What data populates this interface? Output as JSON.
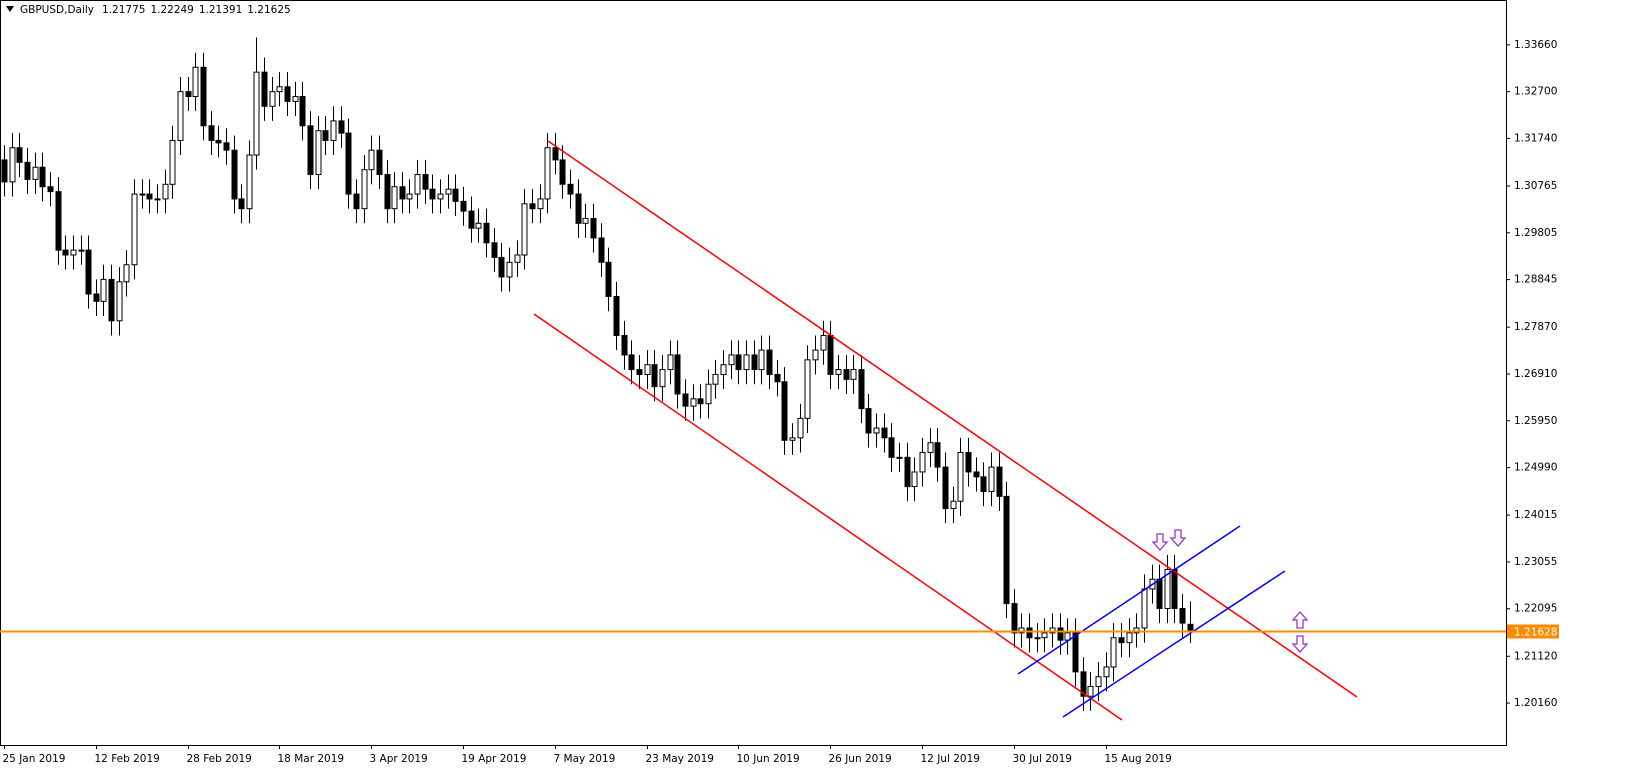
{
  "chart_data": {
    "type": "candlestick",
    "title": "GBPUSD,Daily",
    "categories": [
      "25 Jan 2019",
      null,
      null,
      null,
      null,
      null,
      null,
      null,
      null,
      null,
      null,
      null,
      "12 Feb 2019",
      null,
      null,
      null,
      null,
      null,
      null,
      null,
      null,
      null,
      null,
      null,
      "28 Feb 2019",
      null,
      null,
      null,
      null,
      null,
      null,
      null,
      null,
      null,
      null,
      null,
      "18 Mar 2019",
      null,
      null,
      null,
      null,
      null,
      null,
      null,
      null,
      null,
      null,
      null,
      "3 Apr 2019",
      null,
      null,
      null,
      null,
      null,
      null,
      null,
      null,
      null,
      null,
      null,
      "19 Apr 2019",
      null,
      null,
      null,
      null,
      null,
      null,
      null,
      null,
      null,
      null,
      null,
      "7 May 2019",
      null,
      null,
      null,
      null,
      null,
      null,
      null,
      null,
      null,
      null,
      null,
      "23 May 2019",
      null,
      null,
      null,
      null,
      null,
      null,
      null,
      null,
      null,
      null,
      null,
      "10 Jun 2019",
      null,
      null,
      null,
      null,
      null,
      null,
      null,
      null,
      null,
      null,
      null,
      "26 Jun 2019",
      null,
      null,
      null,
      null,
      null,
      null,
      null,
      null,
      null,
      null,
      null,
      "12 Jul 2019",
      null,
      null,
      null,
      null,
      null,
      null,
      null,
      null,
      null,
      null,
      null,
      "30 Jul 2019",
      null,
      null,
      null,
      null,
      null,
      null,
      null,
      null,
      null,
      null,
      null,
      "15 Aug 2019",
      null,
      null,
      null,
      null,
      null,
      null,
      null,
      null,
      null,
      null,
      null
    ],
    "open": [
      1.313,
      1.3085,
      1.3155,
      1.3125,
      1.309,
      1.3115,
      1.3075,
      1.3065,
      1.2945,
      1.2935,
      1.2945,
      1.2945,
      1.2855,
      1.284,
      1.2885,
      1.28,
      1.288,
      1.2915,
      1.306,
      1.306,
      1.305,
      1.305,
      1.308,
      1.317,
      1.327,
      1.326,
      1.332,
      1.32,
      1.317,
      1.3165,
      1.315,
      1.305,
      1.303,
      1.314,
      1.331,
      1.324,
      1.327,
      1.328,
      1.325,
      1.326,
      1.32,
      1.31,
      1.319,
      1.317,
      1.321,
      1.3185,
      1.306,
      1.303,
      1.311,
      1.315,
      1.31,
      1.303,
      1.3075,
      1.305,
      1.306,
      1.31,
      1.307,
      1.305,
      1.306,
      1.307,
      1.3045,
      1.3025,
      1.299,
      1.3,
      1.296,
      1.293,
      1.289,
      1.292,
      1.2935,
      1.304,
      1.303,
      1.305,
      1.3155,
      1.313,
      1.308,
      1.306,
      1.3,
      1.301,
      1.297,
      1.292,
      1.285,
      1.277,
      1.273,
      1.27,
      1.269,
      1.271,
      1.2665,
      1.27,
      1.273,
      1.265,
      1.2625,
      1.264,
      1.263,
      1.267,
      1.269,
      1.271,
      1.273,
      1.27,
      1.273,
      1.27,
      1.274,
      1.269,
      1.2675,
      1.2555,
      1.256,
      1.26,
      1.272,
      1.274,
      1.277,
      1.269,
      1.27,
      1.268,
      1.27,
      1.262,
      1.257,
      1.258,
      1.256,
      1.252,
      1.252,
      1.246,
      1.249,
      1.253,
      1.255,
      1.25,
      1.2415,
      1.243,
      1.253,
      1.249,
      1.248,
      1.245,
      1.25,
      1.244,
      1.222,
      1.216,
      1.217,
      1.215,
      1.215,
      1.216,
      1.217,
      1.2145,
      1.216,
      1.208,
      1.203,
      1.205,
      1.207,
      1.209,
      1.215,
      1.214,
      1.216,
      1.217,
      1.225,
      1.227,
      1.221,
      1.229,
      1.221,
      1.21775
    ],
    "high": [
      1.316,
      1.3185,
      1.3185,
      1.3155,
      1.3145,
      1.3145,
      1.3105,
      1.3095,
      1.2975,
      1.2975,
      1.2975,
      1.2975,
      1.2885,
      1.2915,
      1.2915,
      1.291,
      1.2945,
      1.309,
      1.309,
      1.309,
      1.308,
      1.311,
      1.32,
      1.33,
      1.33,
      1.335,
      1.335,
      1.323,
      1.32,
      1.3195,
      1.318,
      1.308,
      1.317,
      1.3381,
      1.334,
      1.33,
      1.331,
      1.331,
      1.329,
      1.329,
      1.323,
      1.322,
      1.322,
      1.324,
      1.324,
      1.3215,
      1.309,
      1.314,
      1.318,
      1.318,
      1.313,
      1.3105,
      1.3105,
      1.309,
      1.313,
      1.313,
      1.31,
      1.309,
      1.31,
      1.31,
      1.3075,
      1.3055,
      1.303,
      1.303,
      1.299,
      1.296,
      1.295,
      1.2965,
      1.307,
      1.307,
      1.308,
      1.3185,
      1.3185,
      1.316,
      1.311,
      1.309,
      1.304,
      1.304,
      1.3,
      1.295,
      1.288,
      1.28,
      1.276,
      1.273,
      1.274,
      1.274,
      1.273,
      1.276,
      1.276,
      1.268,
      1.267,
      1.267,
      1.27,
      1.272,
      1.274,
      1.276,
      1.276,
      1.276,
      1.276,
      1.277,
      1.277,
      1.272,
      1.2705,
      1.259,
      1.263,
      1.275,
      1.277,
      1.28,
      1.28,
      1.273,
      1.273,
      1.273,
      1.273,
      1.265,
      1.261,
      1.261,
      1.259,
      1.255,
      1.255,
      1.252,
      1.256,
      1.258,
      1.258,
      1.253,
      1.246,
      1.256,
      1.256,
      1.252,
      1.251,
      1.253,
      1.253,
      1.247,
      1.225,
      1.22,
      1.22,
      1.218,
      1.219,
      1.22,
      1.22,
      1.219,
      1.219,
      1.211,
      1.208,
      1.21,
      1.212,
      1.218,
      1.218,
      1.219,
      1.22,
      1.228,
      1.23,
      1.23,
      1.232,
      1.232,
      1.224,
      1.22249
    ],
    "low": [
      1.3055,
      1.3055,
      1.3095,
      1.306,
      1.306,
      1.3045,
      1.3035,
      1.2915,
      1.2905,
      1.2905,
      1.2915,
      1.2825,
      1.281,
      1.281,
      1.277,
      1.277,
      1.285,
      1.2885,
      1.303,
      1.302,
      1.302,
      1.302,
      1.305,
      1.314,
      1.323,
      1.323,
      1.317,
      1.314,
      1.3135,
      1.312,
      1.302,
      1.3,
      1.3,
      1.311,
      1.321,
      1.321,
      1.324,
      1.322,
      1.322,
      1.317,
      1.307,
      1.307,
      1.314,
      1.314,
      1.3155,
      1.303,
      1.3,
      1.3,
      1.308,
      1.307,
      1.3,
      1.3,
      1.302,
      1.302,
      1.303,
      1.304,
      1.302,
      1.302,
      1.303,
      1.3015,
      1.2995,
      1.296,
      1.296,
      1.293,
      1.29,
      1.286,
      1.286,
      1.289,
      1.2905,
      1.3,
      1.3,
      1.302,
      1.31,
      1.305,
      1.303,
      1.297,
      1.297,
      1.294,
      1.289,
      1.282,
      1.274,
      1.27,
      1.267,
      1.266,
      1.266,
      1.2635,
      1.2635,
      1.267,
      1.262,
      1.2595,
      1.2595,
      1.26,
      1.26,
      1.264,
      1.266,
      1.268,
      1.267,
      1.267,
      1.267,
      1.267,
      1.266,
      1.2645,
      1.2525,
      1.2525,
      1.253,
      1.257,
      1.269,
      1.271,
      1.266,
      1.266,
      1.265,
      1.265,
      1.259,
      1.254,
      1.254,
      1.253,
      1.249,
      1.249,
      1.243,
      1.243,
      1.246,
      1.25,
      1.247,
      1.2385,
      1.2385,
      1.24,
      1.246,
      1.245,
      1.242,
      1.242,
      1.241,
      1.219,
      1.213,
      1.213,
      1.212,
      1.212,
      1.212,
      1.213,
      1.2115,
      1.2115,
      1.205,
      1.2,
      1.2,
      1.202,
      1.204,
      1.206,
      1.211,
      1.211,
      1.213,
      1.214,
      1.222,
      1.218,
      1.218,
      1.218,
      1.215,
      1.21391
    ],
    "close": [
      1.3085,
      1.3155,
      1.3125,
      1.309,
      1.3115,
      1.3075,
      1.3065,
      1.2945,
      1.2935,
      1.2945,
      1.2945,
      1.2855,
      1.284,
      1.2885,
      1.28,
      1.288,
      1.2915,
      1.306,
      1.306,
      1.305,
      1.305,
      1.308,
      1.317,
      1.327,
      1.326,
      1.332,
      1.32,
      1.317,
      1.3165,
      1.315,
      1.305,
      1.303,
      1.314,
      1.331,
      1.324,
      1.327,
      1.328,
      1.325,
      1.326,
      1.32,
      1.31,
      1.319,
      1.317,
      1.321,
      1.3185,
      1.306,
      1.303,
      1.311,
      1.315,
      1.31,
      1.303,
      1.3075,
      1.305,
      1.306,
      1.31,
      1.307,
      1.305,
      1.306,
      1.307,
      1.3045,
      1.3025,
      1.299,
      1.3,
      1.296,
      1.293,
      1.289,
      1.292,
      1.2935,
      1.304,
      1.303,
      1.305,
      1.3155,
      1.313,
      1.308,
      1.306,
      1.3,
      1.301,
      1.297,
      1.292,
      1.285,
      1.277,
      1.273,
      1.27,
      1.269,
      1.271,
      1.2665,
      1.27,
      1.273,
      1.265,
      1.2625,
      1.264,
      1.263,
      1.267,
      1.269,
      1.271,
      1.273,
      1.27,
      1.273,
      1.27,
      1.274,
      1.269,
      1.2675,
      1.2555,
      1.256,
      1.26,
      1.272,
      1.274,
      1.277,
      1.269,
      1.27,
      1.268,
      1.27,
      1.262,
      1.257,
      1.258,
      1.256,
      1.252,
      1.252,
      1.246,
      1.249,
      1.253,
      1.255,
      1.25,
      1.2415,
      1.243,
      1.253,
      1.249,
      1.248,
      1.245,
      1.25,
      1.244,
      1.222,
      1.216,
      1.217,
      1.215,
      1.215,
      1.216,
      1.217,
      1.2145,
      1.216,
      1.208,
      1.203,
      1.205,
      1.207,
      1.209,
      1.215,
      1.214,
      1.216,
      1.217,
      1.225,
      1.227,
      1.221,
      1.229,
      1.221,
      1.218,
      1.21625
    ],
    "ylim": [
      1.193,
      1.3458
    ],
    "yticks": [
      {
        "value": 1.3366,
        "label": "1.33660"
      },
      {
        "value": 1.327,
        "label": "1.32700"
      },
      {
        "value": 1.3174,
        "label": "1.31740"
      },
      1.30765,
      1.29805,
      1.28845,
      {
        "value": 1.2787,
        "label": "1.27870"
      },
      {
        "value": 1.2691,
        "label": "1.26910"
      },
      {
        "value": 1.2595,
        "label": "1.25950"
      },
      {
        "value": 1.2499,
        "label": "1.24990"
      },
      1.24015,
      1.23055,
      1.22095,
      {
        "value": 1.2112,
        "label": "1.21120"
      },
      {
        "value": 1.2016,
        "label": "1.20160"
      }
    ],
    "price_line": 1.21628,
    "price_line_color": "#ff8c00",
    "up_color": "#ffffff",
    "down_color": "#000000",
    "grid": false
  }
}
